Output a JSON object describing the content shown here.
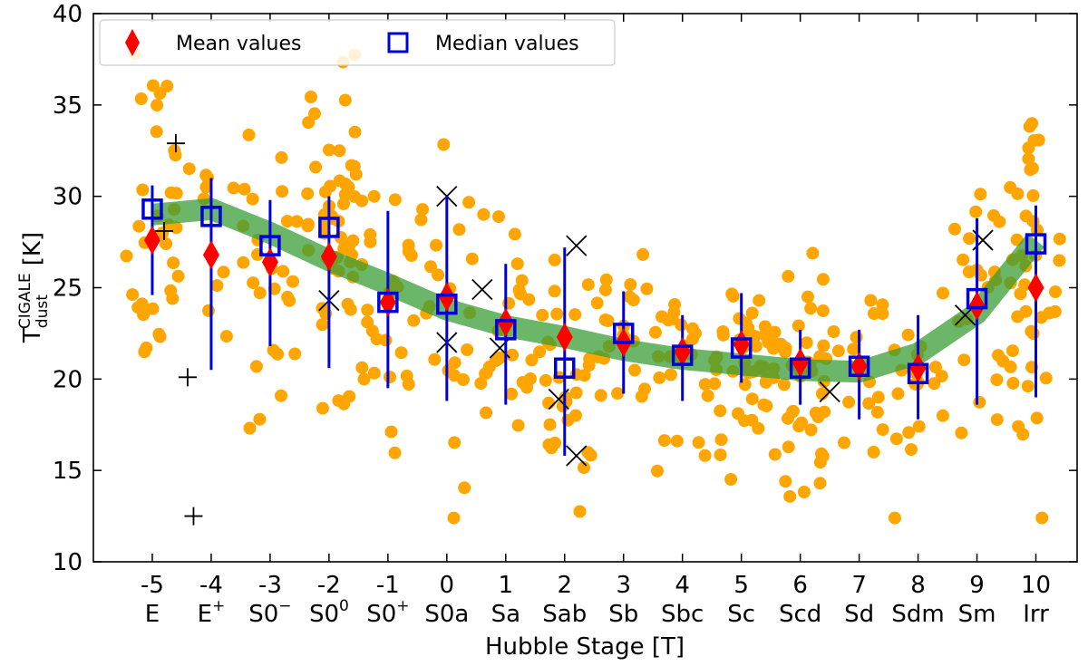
{
  "chart_data": {
    "type": "scatter",
    "xlabel": "Hubble Stage [T]",
    "ylabel": {
      "main": "T",
      "sup": "CIGALE",
      "sub": "dust",
      "unit": "[K]"
    },
    "xlim": [
      -6,
      10.7
    ],
    "ylim": [
      10,
      40
    ],
    "yticks": [
      10,
      15,
      20,
      25,
      30,
      35,
      40
    ],
    "xticks": [
      {
        "t": -5,
        "num": "-5",
        "stage": "E",
        "sup": ""
      },
      {
        "t": -4,
        "num": "-4",
        "stage": "E",
        "sup": "+"
      },
      {
        "t": -3,
        "num": "-3",
        "stage": "S0",
        "sup": "−"
      },
      {
        "t": -2,
        "num": "-2",
        "stage": "S0",
        "sup": "0"
      },
      {
        "t": -1,
        "num": "-1",
        "stage": "S0",
        "sup": "+"
      },
      {
        "t": 0,
        "num": "0",
        "stage": "S0a",
        "sup": ""
      },
      {
        "t": 1,
        "num": "1",
        "stage": "Sa",
        "sup": ""
      },
      {
        "t": 2,
        "num": "2",
        "stage": "Sab",
        "sup": ""
      },
      {
        "t": 3,
        "num": "3",
        "stage": "Sb",
        "sup": ""
      },
      {
        "t": 4,
        "num": "4",
        "stage": "Sbc",
        "sup": ""
      },
      {
        "t": 5,
        "num": "5",
        "stage": "Sc",
        "sup": ""
      },
      {
        "t": 6,
        "num": "6",
        "stage": "Scd",
        "sup": ""
      },
      {
        "t": 7,
        "num": "7",
        "stage": "Sd",
        "sup": ""
      },
      {
        "t": 8,
        "num": "8",
        "stage": "Sdm",
        "sup": ""
      },
      {
        "t": 9,
        "num": "9",
        "stage": "Sm",
        "sup": ""
      },
      {
        "t": 10,
        "num": "10",
        "stage": "Irr",
        "sup": ""
      }
    ],
    "legend": {
      "position": "top-left",
      "entries": [
        {
          "label": "Mean values",
          "marker": "diamond",
          "color": "#ff0000"
        },
        {
          "label": "Median values",
          "marker": "open-square",
          "color": "#0000dd"
        }
      ]
    },
    "colors": {
      "points": "#ffa500",
      "mean": "#ff0000",
      "median": "#0000dd",
      "trend": "#3a9e35",
      "cross": "#000000"
    },
    "trend_band": {
      "x": [
        -5,
        -4,
        -3,
        -2,
        -1,
        0,
        1,
        2,
        3,
        4,
        5,
        6,
        7,
        8,
        9,
        10
      ],
      "y": [
        29.0,
        29.3,
        28.0,
        26.5,
        25.2,
        23.8,
        22.9,
        22.3,
        21.6,
        21.1,
        20.8,
        20.5,
        20.4,
        21.4,
        23.6,
        27.6
      ]
    },
    "series": [
      {
        "name": "Mean values",
        "x": [
          -5,
          -4,
          -3,
          -2,
          -1,
          0,
          1,
          2,
          3,
          4,
          5,
          6,
          7,
          8,
          9,
          10
        ],
        "y": [
          27.6,
          26.8,
          26.4,
          26.7,
          24.2,
          24.5,
          23.1,
          22.3,
          22.0,
          21.5,
          21.9,
          20.9,
          20.7,
          20.6,
          24.0,
          25.0
        ]
      },
      {
        "name": "Median values",
        "x": [
          -5,
          -4,
          -3,
          -2,
          -1,
          0,
          1,
          2,
          3,
          4,
          5,
          6,
          7,
          8,
          9,
          10
        ],
        "y": [
          29.3,
          28.9,
          27.3,
          28.3,
          24.2,
          24.1,
          22.7,
          20.6,
          22.5,
          21.3,
          21.7,
          20.6,
          20.7,
          20.3,
          24.4,
          27.4
        ],
        "err_low": [
          24.6,
          20.5,
          21.8,
          20.6,
          19.5,
          18.8,
          18.6,
          15.8,
          19.2,
          18.8,
          19.8,
          18.6,
          17.8,
          17.8,
          18.6,
          19.0
        ],
        "err_high": [
          30.6,
          31.0,
          29.8,
          30.0,
          29.2,
          30.0,
          26.3,
          27.2,
          24.8,
          23.5,
          24.7,
          22.7,
          22.7,
          23.5,
          28.8,
          29.5
        ]
      },
      {
        "name": "plus-markers",
        "x": [
          -4.6,
          -4.4,
          -4.3,
          -4.8
        ],
        "y": [
          32.9,
          20.1,
          12.5,
          28.1
        ]
      },
      {
        "name": "cross-markers",
        "x": [
          -2.0,
          0.0,
          0.0,
          0.6,
          0.9,
          1.9,
          2.2,
          2.2,
          6.5,
          8.8,
          9.1
        ],
        "y": [
          24.3,
          30.0,
          22.0,
          24.9,
          21.7,
          18.9,
          15.8,
          27.3,
          19.3,
          23.5,
          27.6
        ]
      }
    ]
  }
}
